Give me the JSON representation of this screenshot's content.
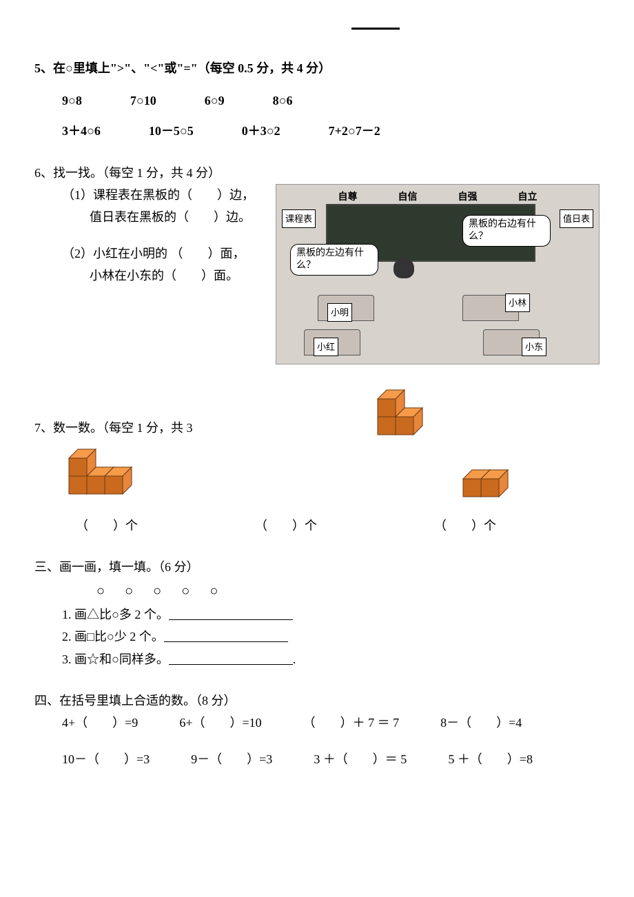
{
  "top_blank": "",
  "q5": {
    "title": "5、在○里填上\">\"、\"<\"或\"=\"（每空 0.5 分，共 4 分）",
    "row1": [
      "9○8",
      "7○10",
      "6○9",
      "8○6"
    ],
    "row2": [
      "3＋4○6",
      "10－5○5",
      "0＋3○2",
      "7+2○7－2"
    ]
  },
  "q6": {
    "title": "6、找一找。（每空 1 分，共 4 分）",
    "line1": "（1）课程表在黑板的（　　）边，",
    "line2": "值日表在黑板的（　　）边。",
    "line3": "（2）小红在小明的 （　　）面，",
    "line4": "小林在小东的（　　）面。",
    "img": {
      "banner": [
        "自尊",
        "自信",
        "自强",
        "自立"
      ],
      "left_card": "课程表",
      "right_card": "值日表",
      "bubble_left": "黑板的左边有什么？",
      "bubble_right": "黑板的右边有什么？",
      "names": {
        "xiaoming": "小明",
        "xiaohong": "小红",
        "xiaolin": "小林",
        "xiaodong": "小东"
      }
    }
  },
  "q7": {
    "title": "7、数一数。（每空 1 分，共 3",
    "blank": "（　　）个",
    "cubes": {
      "color_top": "#f59b4a",
      "color_left": "#c96a1f",
      "color_right": "#e8863a",
      "stroke": "#6b3a12"
    }
  },
  "q3": {
    "title": "三、画一画，填一填。（6 分）",
    "circles": "○ ○ ○ ○ ○",
    "line1": "1. 画△比○多 2 个。",
    "line2": "2. 画□比○少 2 个。",
    "line3": "3. 画☆和○同样多。"
  },
  "q4": {
    "title": "四、在括号里填上合适的数。（8 分）",
    "row1": [
      "4+（　　）=9",
      "6+（　　）=10",
      "（　　）＋ 7 ＝ 7",
      "8－（　　）=4"
    ],
    "row2": [
      "10－（　　）=3",
      "9－（　　）=3",
      "3 ＋（　　）＝ 5",
      "5 ＋（　　）=8"
    ]
  }
}
